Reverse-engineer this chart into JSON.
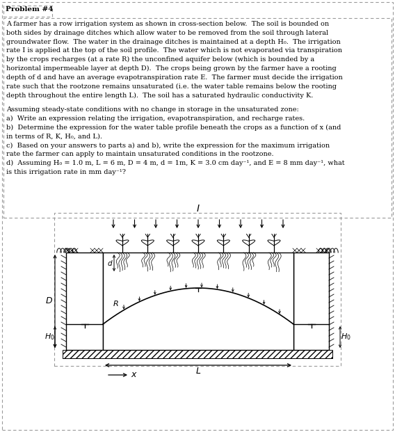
{
  "title": "Problem #4",
  "problem_text_lines": [
    "A farmer has a row irrigation system as shown in cross-section below.  The soil is bounded on",
    "both sides by drainage ditches which allow water to be removed from the soil through lateral",
    "groundwater flow.  The water in the drainage ditches is maintained at a depth H₀.  The irrigation",
    "rate I is applied at the top of the soil profile.  The water which is not evaporated via transpiration",
    "by the crops recharges (at a rate R) the unconfined aquifer below (which is bounded by a",
    "horizontal impermeable layer at depth D).  The crops being grown by the farmer have a rooting",
    "depth of d and have an average evapotranspiration rate E.  The farmer must decide the irrigation",
    "rate such that the rootzone remains unsaturated (i.e. the water table remains below the rooting",
    "depth throughout the entire length L).  The soil has a saturated hydraulic conductivity K."
  ],
  "subproblem_lines": [
    "Assuming steady-state conditions with no change in storage in the unsaturated zone:",
    "a)  Write an expression relating the irrigation, evapotranspiration, and recharge rates.",
    "b)  Determine the expression for the water table profile beneath the crops as a function of x (and",
    "in terms of R, K, H₀, and L).",
    "c)  Based on your answers to parts a) and b), write the expression for the maximum irrigation",
    "rate the farmer can apply to maintain unsaturated conditions in the rootzone.",
    "d)  Assuming H₀ = 1.0 m, L = 6 m, D = 4 m, d = 1m, K = 3.0 cm day⁻¹, and E = 8 mm day⁻¹, what",
    "is this irrigation rate in mm day⁻¹?"
  ],
  "fig_bg": "#ffffff",
  "text_color": "#000000"
}
